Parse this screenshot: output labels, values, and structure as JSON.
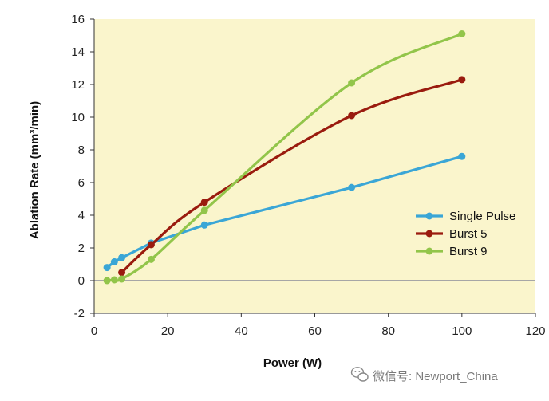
{
  "chart_data": {
    "type": "line",
    "xlabel": "Power (W)",
    "ylabel": "Ablation Rate (mm³/min)",
    "xlim": [
      0,
      120
    ],
    "ylim": [
      -2,
      16
    ],
    "xticks": [
      0,
      20,
      40,
      60,
      80,
      100,
      120
    ],
    "yticks": [
      -2,
      0,
      2,
      4,
      6,
      8,
      10,
      12,
      14,
      16
    ],
    "plot_background": "#faf5cc",
    "zero_line_color": "#a6a6a6",
    "legend_position": "right",
    "series": [
      {
        "name": "Single Pulse",
        "color": "#3aa6d6",
        "smooth": false,
        "x": [
          3.5,
          5.5,
          7.5,
          15.5,
          30,
          70,
          100
        ],
        "y": [
          0.8,
          1.15,
          1.4,
          2.3,
          3.4,
          5.7,
          7.6
        ]
      },
      {
        "name": "Burst 5",
        "color": "#9a1b0e",
        "smooth": true,
        "x": [
          7.5,
          15.5,
          30,
          70,
          100
        ],
        "y": [
          0.5,
          2.2,
          4.8,
          10.1,
          12.3
        ]
      },
      {
        "name": "Burst 9",
        "color": "#92c54a",
        "smooth": true,
        "x": [
          3.5,
          5.5,
          7.5,
          15.5,
          30,
          70,
          100
        ],
        "y": [
          0.0,
          0.05,
          0.1,
          1.3,
          4.3,
          12.1,
          15.1
        ]
      }
    ]
  },
  "watermark": {
    "text": "微信号: Newport_China",
    "icon": "wechat-icon"
  }
}
